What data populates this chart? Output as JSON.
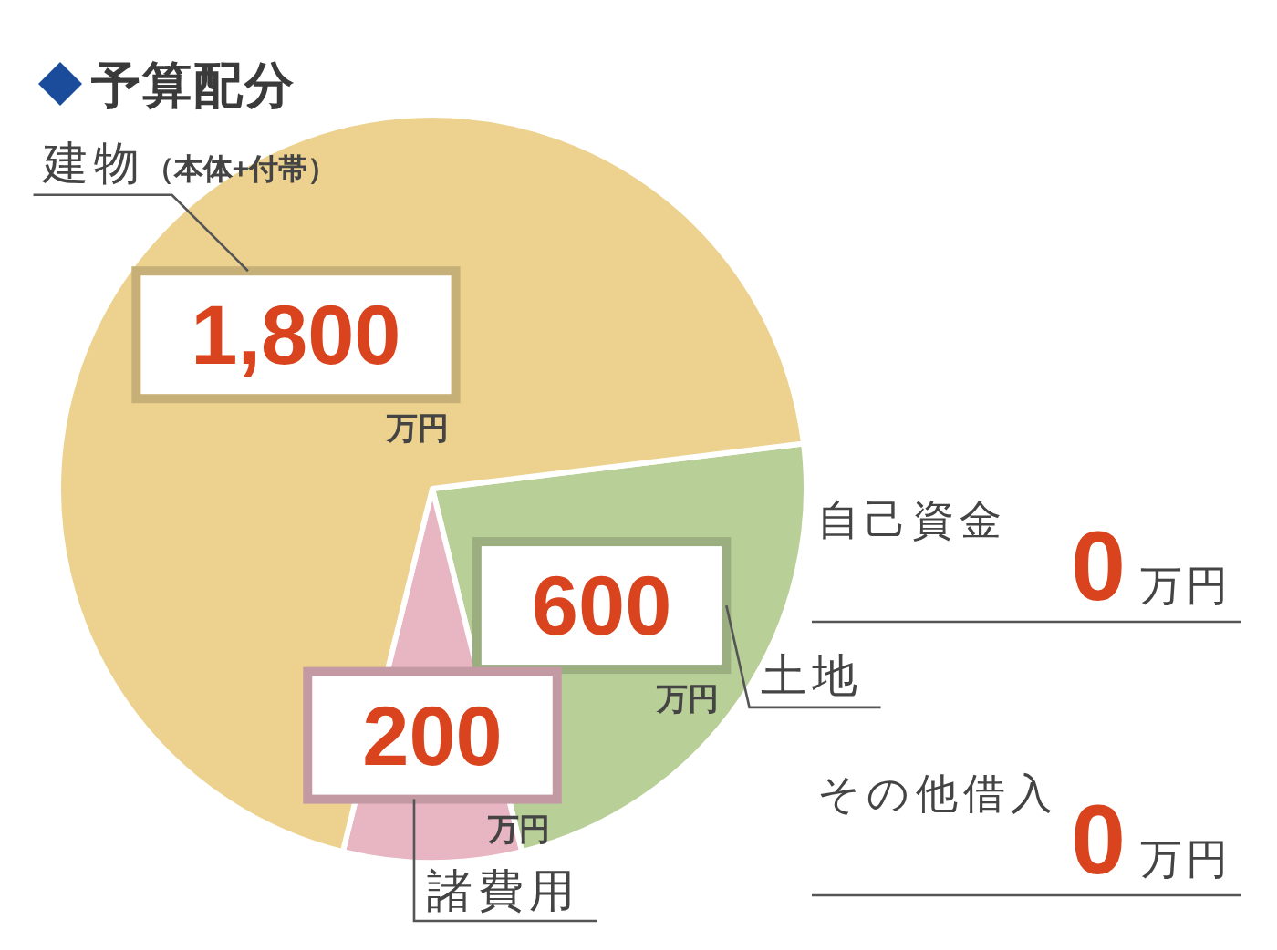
{
  "chart_data": {
    "type": "pie",
    "title": "予算配分",
    "categories": [
      "土地",
      "諸費用",
      "建物（本体+付帯）"
    ],
    "values": [
      600,
      200,
      1800
    ],
    "colors": [
      "#b9cf98",
      "#e8b6c2",
      "#ecd28e"
    ],
    "value_labels": [
      "600万円",
      "200万円",
      "1,800万円"
    ],
    "annotations": [
      "自己資金",
      "0万円",
      "その他借入",
      "0万円"
    ]
  }
}
